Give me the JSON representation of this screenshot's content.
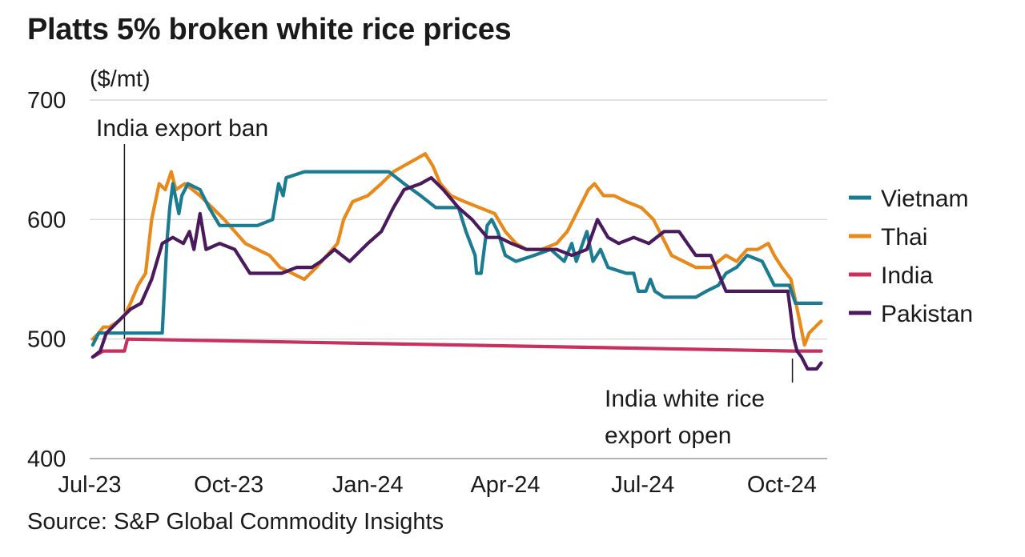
{
  "title": "Platts 5% broken white rice prices",
  "source": "Source: S&P Global Commodity Insights",
  "chart_data": {
    "type": "line",
    "title": "Platts 5% broken white rice prices",
    "ylabel": "($/mt)",
    "xlabel": "",
    "ylim": [
      400,
      700
    ],
    "xlim": [
      "2023-07-01",
      "2024-10-31"
    ],
    "y_ticks": [
      400,
      500,
      600,
      700
    ],
    "x_ticks": [
      {
        "label": "Jul-23",
        "date": "2023-07-01"
      },
      {
        "label": "Oct-23",
        "date": "2023-10-01"
      },
      {
        "label": "Jan-24",
        "date": "2024-01-01"
      },
      {
        "label": "Apr-24",
        "date": "2024-04-01"
      },
      {
        "label": "Jul-24",
        "date": "2024-07-01"
      },
      {
        "label": "Oct-24",
        "date": "2024-10-01"
      }
    ],
    "grid": "horizontal",
    "legend_position": "right",
    "series": [
      {
        "name": "Vietnam",
        "color": "#1b7c91",
        "points": [
          [
            "2023-07-03",
            495
          ],
          [
            "2023-07-07",
            505
          ],
          [
            "2023-07-20",
            505
          ],
          [
            "2023-07-21",
            505
          ],
          [
            "2023-08-18",
            505
          ],
          [
            "2023-08-21",
            580
          ],
          [
            "2023-08-23",
            610
          ],
          [
            "2023-08-25",
            630
          ],
          [
            "2023-08-29",
            605
          ],
          [
            "2023-08-31",
            620
          ],
          [
            "2023-09-04",
            630
          ],
          [
            "2023-09-12",
            625
          ],
          [
            "2023-09-18",
            610
          ],
          [
            "2023-09-25",
            595
          ],
          [
            "2023-10-02",
            595
          ],
          [
            "2023-10-10",
            595
          ],
          [
            "2023-10-20",
            595
          ],
          [
            "2023-10-30",
            600
          ],
          [
            "2023-11-03",
            630
          ],
          [
            "2023-11-06",
            620
          ],
          [
            "2023-11-08",
            635
          ],
          [
            "2023-11-20",
            640
          ],
          [
            "2023-12-01",
            640
          ],
          [
            "2023-12-20",
            640
          ],
          [
            "2024-01-05",
            640
          ],
          [
            "2024-01-15",
            640
          ],
          [
            "2024-01-25",
            630
          ],
          [
            "2024-02-05",
            620
          ],
          [
            "2024-02-15",
            610
          ],
          [
            "2024-03-01",
            610
          ],
          [
            "2024-03-06",
            590
          ],
          [
            "2024-03-12",
            570
          ],
          [
            "2024-03-13",
            555
          ],
          [
            "2024-03-16",
            555
          ],
          [
            "2024-03-20",
            595
          ],
          [
            "2024-03-23",
            600
          ],
          [
            "2024-03-27",
            590
          ],
          [
            "2024-04-01",
            570
          ],
          [
            "2024-04-08",
            565
          ],
          [
            "2024-04-20",
            570
          ],
          [
            "2024-05-01",
            575
          ],
          [
            "2024-05-10",
            565
          ],
          [
            "2024-05-15",
            580
          ],
          [
            "2024-05-18",
            565
          ],
          [
            "2024-05-25",
            590
          ],
          [
            "2024-05-29",
            565
          ],
          [
            "2024-06-03",
            575
          ],
          [
            "2024-06-08",
            560
          ],
          [
            "2024-06-20",
            555
          ],
          [
            "2024-06-25",
            555
          ],
          [
            "2024-06-28",
            540
          ],
          [
            "2024-07-03",
            540
          ],
          [
            "2024-07-06",
            550
          ],
          [
            "2024-07-09",
            540
          ],
          [
            "2024-07-15",
            535
          ],
          [
            "2024-07-25",
            535
          ],
          [
            "2024-08-05",
            535
          ],
          [
            "2024-08-12",
            540
          ],
          [
            "2024-08-20",
            545
          ],
          [
            "2024-08-25",
            555
          ],
          [
            "2024-09-01",
            560
          ],
          [
            "2024-09-08",
            570
          ],
          [
            "2024-09-18",
            565
          ],
          [
            "2024-09-26",
            545
          ],
          [
            "2024-10-06",
            545
          ],
          [
            "2024-10-10",
            530
          ],
          [
            "2024-10-27",
            530
          ]
        ]
      },
      {
        "name": "Thai",
        "color": "#e8891a",
        "points": [
          [
            "2023-07-03",
            500
          ],
          [
            "2023-07-07",
            505
          ],
          [
            "2023-07-10",
            510
          ],
          [
            "2023-07-14",
            510
          ],
          [
            "2023-07-20",
            515
          ],
          [
            "2023-07-24",
            520
          ],
          [
            "2023-07-28",
            530
          ],
          [
            "2023-08-02",
            545
          ],
          [
            "2023-08-07",
            555
          ],
          [
            "2023-08-11",
            600
          ],
          [
            "2023-08-16",
            630
          ],
          [
            "2023-08-20",
            625
          ],
          [
            "2023-08-24",
            640
          ],
          [
            "2023-08-27",
            625
          ],
          [
            "2023-09-02",
            630
          ],
          [
            "2023-09-12",
            620
          ],
          [
            "2023-09-20",
            610
          ],
          [
            "2023-09-28",
            600
          ],
          [
            "2023-10-05",
            590
          ],
          [
            "2023-10-12",
            580
          ],
          [
            "2023-10-20",
            575
          ],
          [
            "2023-10-28",
            570
          ],
          [
            "2023-11-04",
            560
          ],
          [
            "2023-11-12",
            555
          ],
          [
            "2023-11-20",
            550
          ],
          [
            "2023-11-28",
            560
          ],
          [
            "2023-12-05",
            570
          ],
          [
            "2023-12-12",
            580
          ],
          [
            "2023-12-16",
            600
          ],
          [
            "2023-12-22",
            615
          ],
          [
            "2024-01-01",
            620
          ],
          [
            "2024-01-10",
            630
          ],
          [
            "2024-01-18",
            640
          ],
          [
            "2024-01-25",
            645
          ],
          [
            "2024-02-01",
            650
          ],
          [
            "2024-02-08",
            655
          ],
          [
            "2024-02-13",
            645
          ],
          [
            "2024-02-18",
            630
          ],
          [
            "2024-02-25",
            620
          ],
          [
            "2024-03-05",
            615
          ],
          [
            "2024-03-15",
            610
          ],
          [
            "2024-03-25",
            605
          ],
          [
            "2024-04-01",
            590
          ],
          [
            "2024-04-08",
            580
          ],
          [
            "2024-04-15",
            575
          ],
          [
            "2024-04-25",
            575
          ],
          [
            "2024-05-05",
            580
          ],
          [
            "2024-05-12",
            590
          ],
          [
            "2024-05-20",
            610
          ],
          [
            "2024-05-26",
            625
          ],
          [
            "2024-05-30",
            630
          ],
          [
            "2024-06-05",
            620
          ],
          [
            "2024-06-12",
            620
          ],
          [
            "2024-06-20",
            615
          ],
          [
            "2024-06-30",
            610
          ],
          [
            "2024-07-08",
            600
          ],
          [
            "2024-07-14",
            585
          ],
          [
            "2024-07-20",
            570
          ],
          [
            "2024-07-28",
            565
          ],
          [
            "2024-08-05",
            560
          ],
          [
            "2024-08-15",
            560
          ],
          [
            "2024-08-25",
            570
          ],
          [
            "2024-09-01",
            565
          ],
          [
            "2024-09-08",
            575
          ],
          [
            "2024-09-15",
            575
          ],
          [
            "2024-09-22",
            580
          ],
          [
            "2024-09-26",
            570
          ],
          [
            "2024-10-01",
            560
          ],
          [
            "2024-10-07",
            550
          ],
          [
            "2024-10-12",
            520
          ],
          [
            "2024-10-16",
            495
          ],
          [
            "2024-10-19",
            505
          ],
          [
            "2024-10-23",
            510
          ],
          [
            "2024-10-27",
            515
          ]
        ]
      },
      {
        "name": "India",
        "color": "#c8315c",
        "points": [
          [
            "2023-07-03",
            485
          ],
          [
            "2023-07-10",
            490
          ],
          [
            "2023-07-19",
            490
          ],
          [
            "2023-07-24",
            490
          ],
          [
            "2023-07-26",
            500
          ],
          [
            "2024-10-08",
            490
          ],
          [
            "2024-10-27",
            490
          ]
        ]
      },
      {
        "name": "Pakistan",
        "color": "#4a1a5c",
        "points": [
          [
            "2023-07-03",
            485
          ],
          [
            "2023-07-08",
            490
          ],
          [
            "2023-07-12",
            505
          ],
          [
            "2023-07-20",
            515
          ],
          [
            "2023-07-28",
            525
          ],
          [
            "2023-08-04",
            530
          ],
          [
            "2023-08-11",
            550
          ],
          [
            "2023-08-18",
            580
          ],
          [
            "2023-08-25",
            585
          ],
          [
            "2023-09-01",
            580
          ],
          [
            "2023-09-05",
            590
          ],
          [
            "2023-09-08",
            575
          ],
          [
            "2023-09-12",
            605
          ],
          [
            "2023-09-16",
            575
          ],
          [
            "2023-09-25",
            580
          ],
          [
            "2023-10-05",
            575
          ],
          [
            "2023-10-15",
            555
          ],
          [
            "2023-10-25",
            555
          ],
          [
            "2023-11-05",
            555
          ],
          [
            "2023-11-15",
            560
          ],
          [
            "2023-11-25",
            560
          ],
          [
            "2023-12-01",
            565
          ],
          [
            "2023-12-10",
            575
          ],
          [
            "2023-12-20",
            565
          ],
          [
            "2024-01-01",
            580
          ],
          [
            "2024-01-10",
            590
          ],
          [
            "2024-01-18",
            610
          ],
          [
            "2024-01-25",
            625
          ],
          [
            "2024-02-05",
            630
          ],
          [
            "2024-02-12",
            635
          ],
          [
            "2024-02-20",
            625
          ],
          [
            "2024-03-01",
            610
          ],
          [
            "2024-03-10",
            600
          ],
          [
            "2024-03-20",
            585
          ],
          [
            "2024-03-28",
            585
          ],
          [
            "2024-04-05",
            580
          ],
          [
            "2024-04-15",
            575
          ],
          [
            "2024-04-25",
            575
          ],
          [
            "2024-05-05",
            575
          ],
          [
            "2024-05-15",
            570
          ],
          [
            "2024-05-25",
            575
          ],
          [
            "2024-06-01",
            600
          ],
          [
            "2024-06-08",
            585
          ],
          [
            "2024-06-15",
            580
          ],
          [
            "2024-06-25",
            585
          ],
          [
            "2024-07-05",
            580
          ],
          [
            "2024-07-15",
            590
          ],
          [
            "2024-07-25",
            590
          ],
          [
            "2024-08-05",
            570
          ],
          [
            "2024-08-15",
            570
          ],
          [
            "2024-08-25",
            540
          ],
          [
            "2024-09-10",
            540
          ],
          [
            "2024-09-25",
            540
          ],
          [
            "2024-10-05",
            540
          ],
          [
            "2024-10-09",
            500
          ],
          [
            "2024-10-11",
            490
          ],
          [
            "2024-10-14",
            485
          ],
          [
            "2024-10-18",
            475
          ],
          [
            "2024-10-24",
            475
          ],
          [
            "2024-10-27",
            480
          ]
        ]
      }
    ],
    "annotations": [
      {
        "lines": [
          "India export ban"
        ],
        "date": "2023-07-24"
      },
      {
        "lines": [
          "India white rice",
          "export open"
        ],
        "date": "2024-10-08"
      }
    ]
  }
}
